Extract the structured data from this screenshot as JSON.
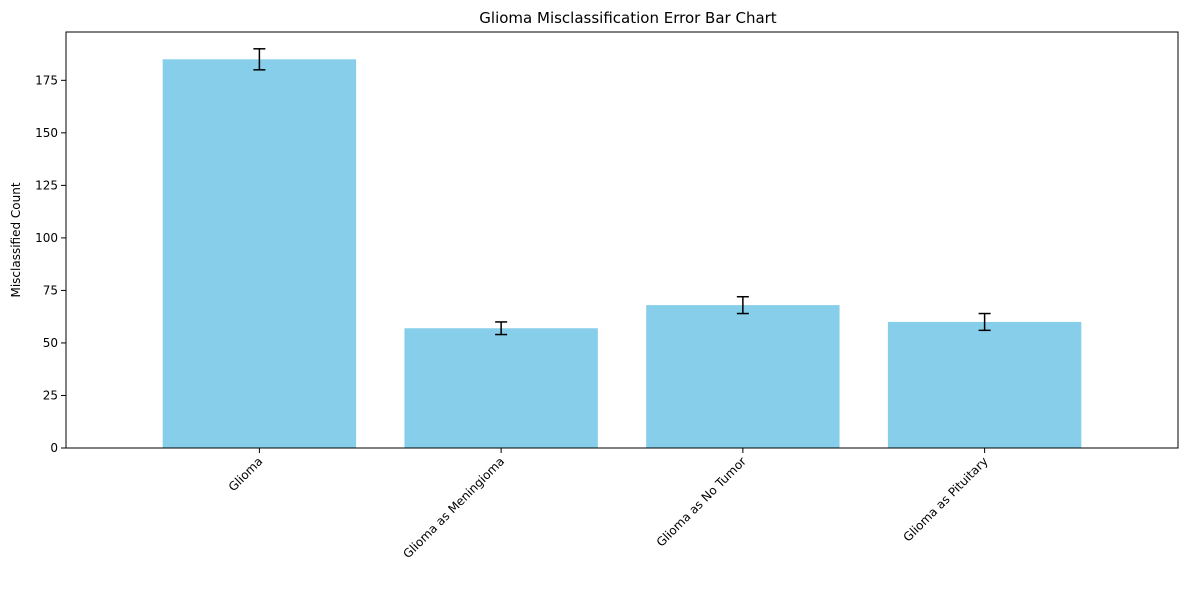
{
  "chart_data": {
    "type": "bar",
    "title": "Glioma Misclassification Error Bar Chart",
    "xlabel": "",
    "ylabel": "Misclassified Count",
    "categories": [
      "Glioma",
      "Glioma as Meningioma",
      "Glioma as No Tumor",
      "Glioma as Pituitary"
    ],
    "values": [
      185,
      57,
      68,
      60
    ],
    "errors": [
      5,
      3,
      4,
      4
    ],
    "ylim": [
      0,
      198
    ],
    "yticks": [
      0,
      25,
      50,
      75,
      100,
      125,
      150,
      175
    ],
    "grid": false,
    "bar_color": "#87ceeb",
    "error_color": "#000000"
  }
}
